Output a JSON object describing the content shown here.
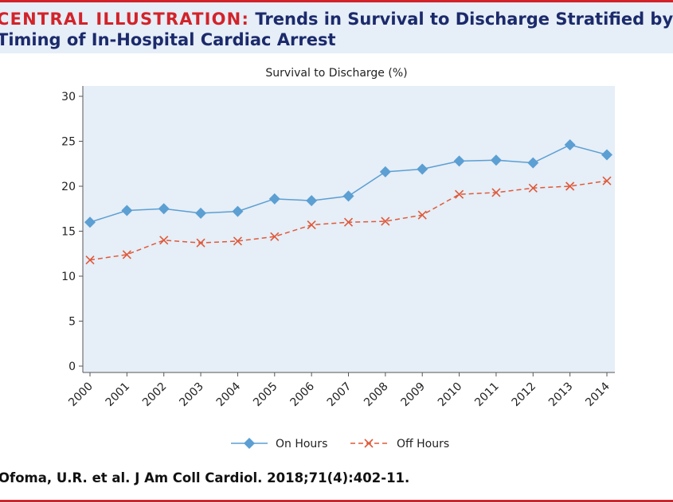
{
  "header": {
    "label": "CENTRAL ILLUSTRATION:",
    "title_line1": "Trends in Survival to Discharge Stratified by",
    "title_line2": "Timing of In-Hospital Cardiac Arrest"
  },
  "citation": "Ofoma, U.R. et al. J Am Coll Cardiol. 2018;71(4):402-11.",
  "colors": {
    "accent_red": "#d2232a",
    "title_navy": "#1b2a6b",
    "plot_background": "#e6eef7",
    "on_hours": "#5b9fd3",
    "off_hours": "#de5a3a"
  },
  "chart_data": {
    "type": "line",
    "title": "Survival to Discharge (%)",
    "xlabel": "",
    "ylabel": "",
    "x": [
      "2000",
      "2001",
      "2002",
      "2003",
      "2004",
      "2005",
      "2006",
      "2007",
      "2008",
      "2009",
      "2010",
      "2011",
      "2012",
      "2013",
      "2014"
    ],
    "yticks": [
      0,
      5,
      10,
      15,
      20,
      25,
      30
    ],
    "ylim": [
      0,
      30
    ],
    "grid": false,
    "legend_position": "bottom-center",
    "series": [
      {
        "name": "On Hours",
        "marker": "diamond",
        "line_style": "solid",
        "color": "#5b9fd3",
        "values": [
          16.0,
          17.3,
          17.5,
          17.0,
          17.2,
          18.6,
          18.4,
          18.9,
          21.6,
          21.9,
          22.8,
          22.9,
          22.6,
          24.6,
          23.5
        ]
      },
      {
        "name": "Off Hours",
        "marker": "x",
        "line_style": "dashed",
        "color": "#de5a3a",
        "values": [
          11.8,
          12.4,
          14.0,
          13.7,
          13.9,
          14.4,
          15.7,
          16.0,
          16.1,
          16.8,
          19.1,
          19.3,
          19.8,
          20.0,
          20.6
        ]
      }
    ]
  }
}
